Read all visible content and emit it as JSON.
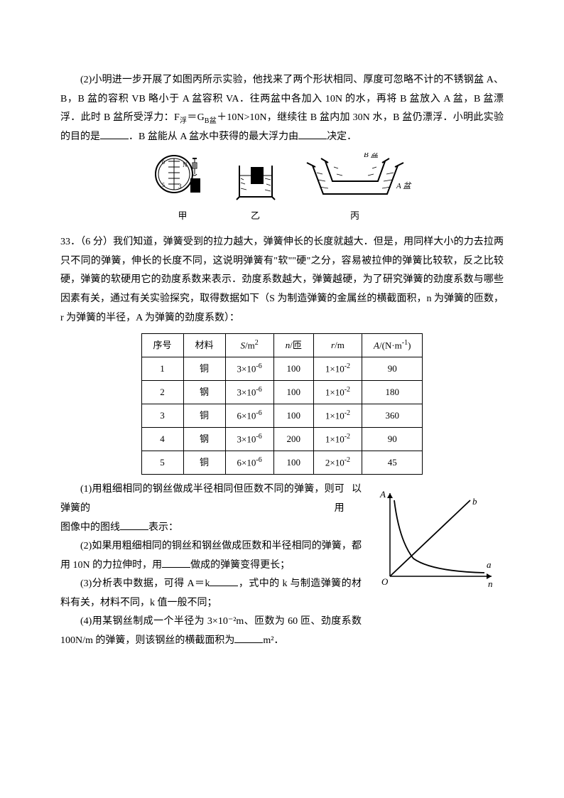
{
  "q1": {
    "p1_a": "(2)小明进一步开展了如图丙所示实验，他找来了两个形状相同、厚度可忽略不计的不锈钢盆 A、B，B 盆的容积 VB 略小于 A 盆容积 VA．往两盆中各加入 10N 的水，再将 B 盆放入 A 盆，B 盆漂浮．此时 B 盆所受浮力：F",
    "p1_sub": "浮",
    "p1_b": "＝G",
    "p1_sub2": "B盆",
    "p1_c": "＋10N>10N，继续往 B 盆内加 30N 水，B 盆仍漂浮．小明此实验的目的是",
    "p1_d": "．B 盆能从 A 盆水中获得的最大浮力由",
    "p1_e": "决定．",
    "fig_labels": {
      "a": "甲",
      "b": "乙",
      "c": "丙",
      "basin_a": "A 盆",
      "basin_b": "B 盆"
    }
  },
  "q2": {
    "num": "33．（6 分）",
    "intro": "我们知道，弹簧受到的拉力越大，弹簧伸长的长度就越大．但是，用同样大小的力去拉两只不同的弹簧，伸长的长度不同，这说明弹簧有\"软\"\"硬\"之分，容易被拉伸的弹簧比较软，反之比较硬，弹簧的软硬用它的劲度系数来表示．劲度系数越大，弹簧越硬，为了研究弹簧的劲度系数与哪些因素有关，通过有关实验探究，取得数据如下（S 为制造弹簧的金属丝的横截面积，n 为弹簧的匝数，r 为弹簧的半径，A 为弹簧的劲度系数）：",
    "table": {
      "headers": [
        "序号",
        "材料",
        "S/m²",
        "n/匝",
        "r/m",
        "A/(N·m⁻¹)"
      ],
      "rows": [
        [
          "1",
          "铜",
          "3×10⁻⁶",
          "100",
          "1×10⁻²",
          "90"
        ],
        [
          "2",
          "钢",
          "3×10⁻⁶",
          "100",
          "1×10⁻²",
          "180"
        ],
        [
          "3",
          "铜",
          "6×10⁻⁶",
          "100",
          "1×10⁻²",
          "360"
        ],
        [
          "4",
          "钢",
          "3×10⁻⁶",
          "200",
          "1×10⁻²",
          "90"
        ],
        [
          "5",
          "铜",
          "6×10⁻⁶",
          "100",
          "2×10⁻²",
          "45"
        ]
      ]
    },
    "sub1_a": "(1)用粗细相同的钢丝做成半径相同但匝数不同的弹簧，则弹簧的",
    "sub1_b": "可以用",
    "sub1_c": "图像中的图线",
    "sub1_d": "表示：",
    "sub2_a": "(2)如果用粗细相同的铜丝和钢丝做成匝数和半径相同的弹簧，都用 10N 的力拉伸时，用",
    "sub2_b": "做成的弹簧变得更长；",
    "sub3_a": "(3)分析表中数据，可得 A＝k",
    "sub3_b": "，式中的 k 与制造弹簧的材料有关，材料不同，k 值一般不同；",
    "sub4_a": "(4)用某钢丝制成一个半径为 3×10⁻²m、匝数为 60 匝、劲度系数 100N/m 的弹簧，则该钢丝的横截面积为",
    "sub4_b": "m²．",
    "graph": {
      "y_label": "A",
      "x_label": "n",
      "line_a": "a",
      "line_b": "b",
      "origin": "O"
    }
  },
  "colors": {
    "text": "#000000",
    "bg": "#ffffff",
    "border": "#000000"
  }
}
